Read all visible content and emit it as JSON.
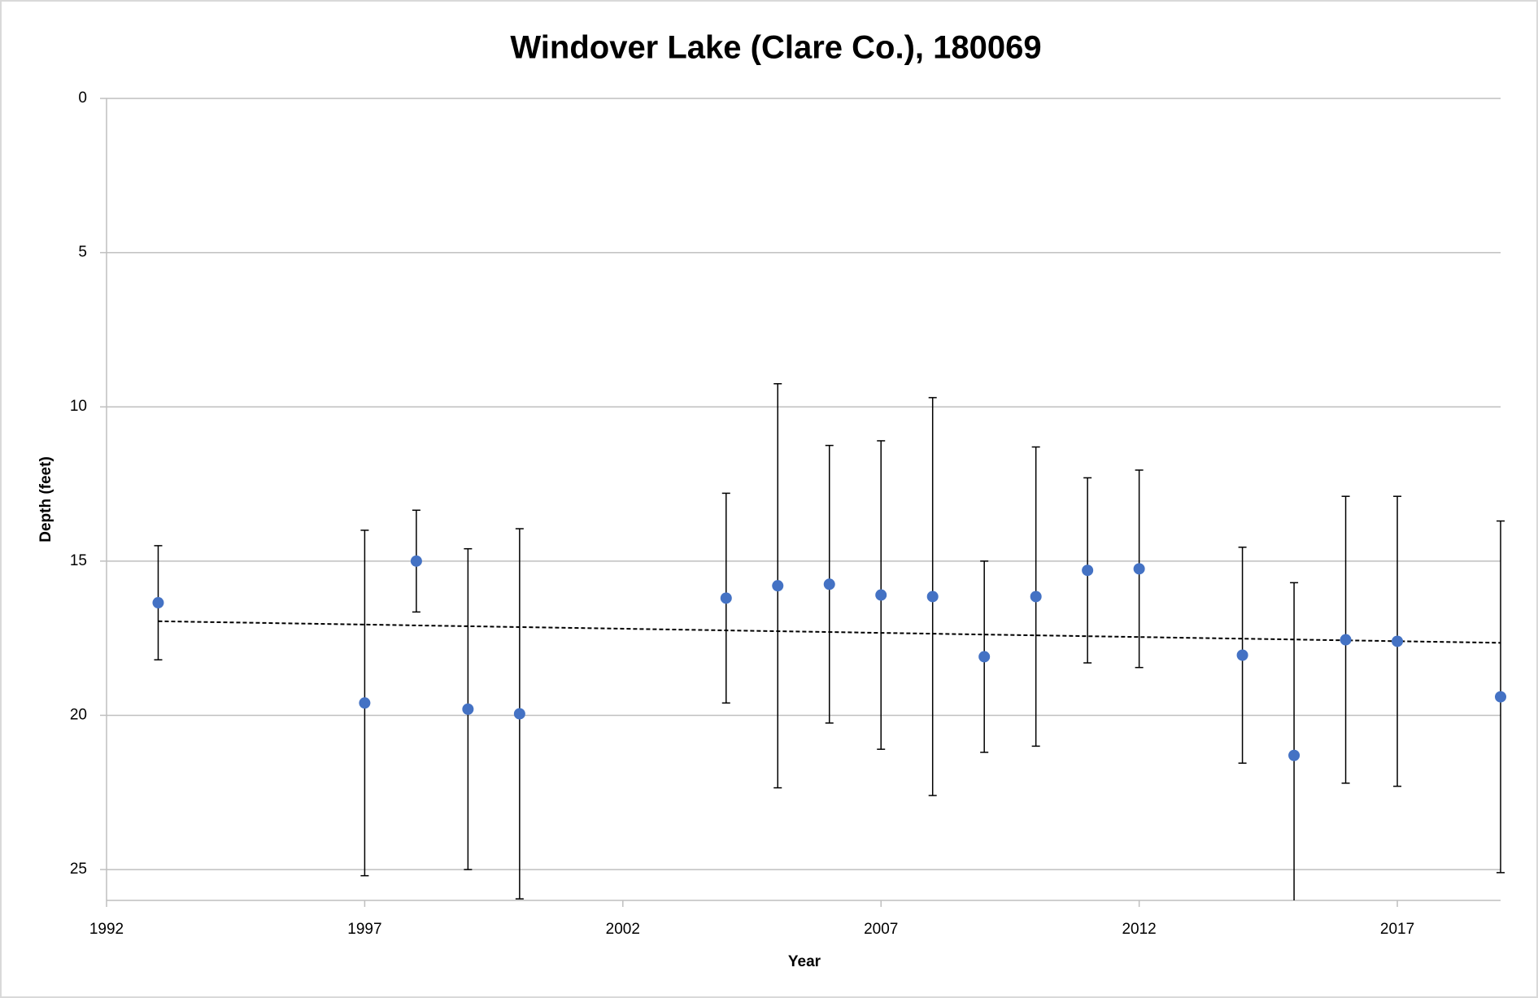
{
  "chart_data": {
    "type": "scatter",
    "title": "Windover Lake (Clare Co.), 180069",
    "x_label": "Year",
    "y_label": "Depth (feet)",
    "xlim": [
      1992,
      2019
    ],
    "xticks": [
      1992,
      1997,
      2002,
      2007,
      2012,
      2017
    ],
    "ylim": [
      0,
      26
    ],
    "yticks": [
      0,
      5,
      10,
      15,
      20,
      25
    ],
    "y_inverted": true,
    "grid": true,
    "series": [
      {
        "color": "#4472c4",
        "x": [
          1993,
          1997,
          1998,
          1999,
          2000,
          2004,
          2005,
          2006,
          2007,
          2008,
          2009,
          2010,
          2011,
          2012,
          2014,
          2015,
          2016,
          2017,
          2019
        ],
        "values": [
          16.35,
          19.6,
          15.0,
          19.8,
          19.95,
          16.2,
          15.8,
          15.75,
          16.1,
          16.15,
          18.1,
          16.15,
          15.3,
          15.25,
          18.05,
          21.3,
          17.55,
          17.6,
          19.4
        ],
        "errors": [
          1.85,
          5.6,
          1.65,
          5.2,
          6.0,
          3.4,
          6.55,
          4.5,
          5.0,
          6.45,
          3.1,
          4.85,
          3.0,
          3.2,
          3.5,
          5.6,
          4.65,
          4.7,
          5.7
        ]
      }
    ],
    "trendline": {
      "color": "#000000",
      "x": [
        1993,
        2019
      ],
      "values": [
        16.95,
        17.65
      ]
    }
  }
}
